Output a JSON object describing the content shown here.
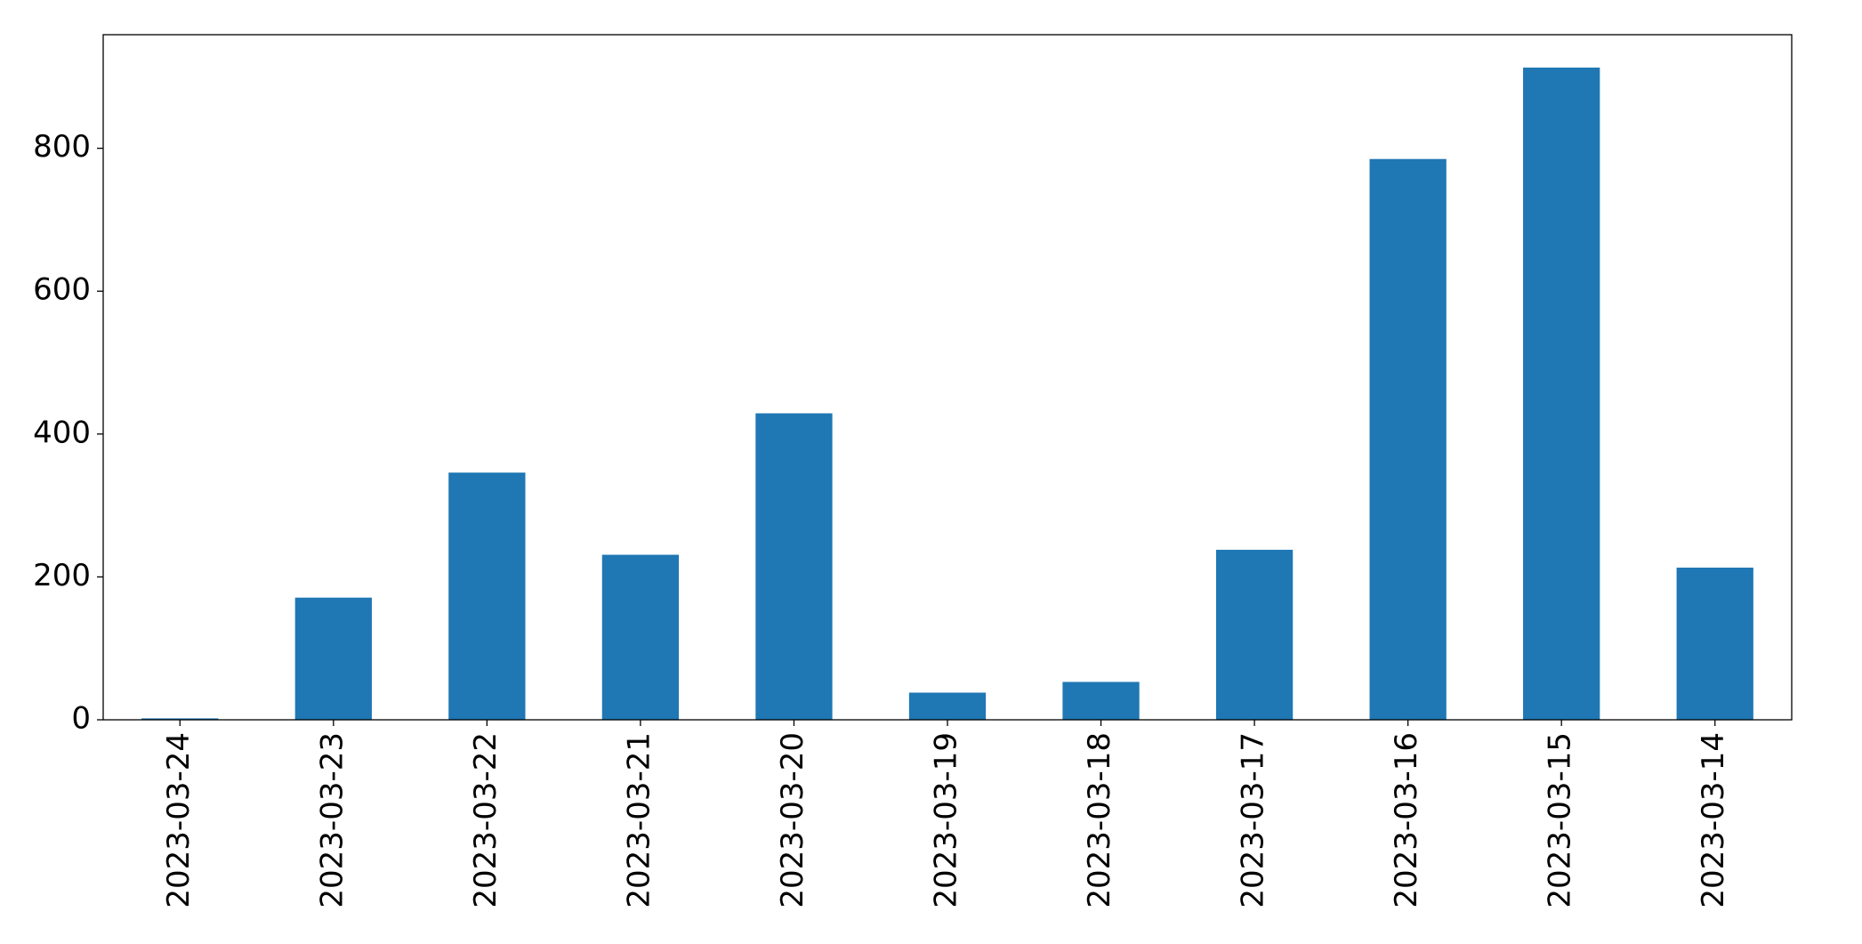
{
  "chart_data": {
    "type": "bar",
    "categories": [
      "2023-03-24",
      "2023-03-23",
      "2023-03-22",
      "2023-03-21",
      "2023-03-20",
      "2023-03-19",
      "2023-03-18",
      "2023-03-17",
      "2023-03-16",
      "2023-03-15",
      "2023-03-14"
    ],
    "values": [
      2,
      171,
      346,
      231,
      429,
      38,
      53,
      238,
      785,
      913,
      213
    ],
    "color": "#1f77b4",
    "ylim": [
      0,
      959
    ],
    "yticks": [
      0,
      200,
      400,
      600,
      800
    ],
    "grid": false
  }
}
